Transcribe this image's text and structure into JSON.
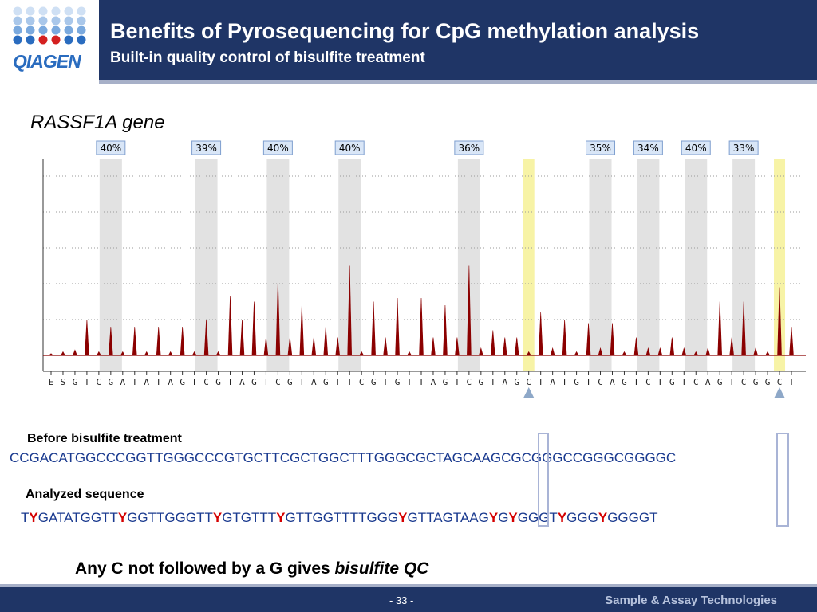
{
  "header": {
    "title": "Benefits of Pyrosequencing for CpG methylation analysis",
    "subtitle": "Built-in quality control of bisulfite treatment"
  },
  "logo": {
    "text": "QIAGEN"
  },
  "gene_label": "RASSF1A gene",
  "chart_data": {
    "type": "bar",
    "title": "",
    "dispensation": [
      "E",
      "S",
      "G",
      "T",
      "C",
      "G",
      "A",
      "T",
      "A",
      "T",
      "A",
      "G",
      "T",
      "C",
      "G",
      "T",
      "A",
      "G",
      "T",
      "C",
      "G",
      "T",
      "A",
      "G",
      "T",
      "T",
      "C",
      "G",
      "T",
      "G",
      "T",
      "T",
      "A",
      "G",
      "T",
      "C",
      "G",
      "T",
      "A",
      "G",
      "C",
      "T",
      "A",
      "T",
      "G",
      "T",
      "C",
      "A",
      "G",
      "T",
      "C",
      "T",
      "G",
      "T",
      "C",
      "A",
      "G",
      "T",
      "C",
      "G",
      "G",
      "C",
      "T"
    ],
    "peaks": [
      0.05,
      0.1,
      0.15,
      1.0,
      0.1,
      0.8,
      0.1,
      0.8,
      0.1,
      0.8,
      0.1,
      0.8,
      0.1,
      1.0,
      0.1,
      1.65,
      1.0,
      1.5,
      0.5,
      2.1,
      0.5,
      1.4,
      0.5,
      0.8,
      0.5,
      2.5,
      0.1,
      1.5,
      0.5,
      1.6,
      0.1,
      1.6,
      0.5,
      1.4,
      0.5,
      2.5,
      0.2,
      0.7,
      0.5,
      0.5,
      0.1,
      1.2,
      0.2,
      1.0,
      0.1,
      0.9,
      0.2,
      0.9,
      0.1,
      0.5,
      0.2,
      0.2,
      0.5,
      0.2,
      0.1,
      0.2,
      1.5,
      0.5,
      1.5,
      0.2,
      0.1,
      1.9,
      0.8
    ],
    "methylation_labels": [
      {
        "pos": 5,
        "label": "40%"
      },
      {
        "pos": 13,
        "label": "39%"
      },
      {
        "pos": 19,
        "label": "40%"
      },
      {
        "pos": 25,
        "label": "40%"
      },
      {
        "pos": 35,
        "label": "36%"
      },
      {
        "pos": 46,
        "label": "35%"
      },
      {
        "pos": 50,
        "label": "34%"
      },
      {
        "pos": 54,
        "label": "40%"
      },
      {
        "pos": 58,
        "label": "33%"
      }
    ],
    "qc_positions": [
      40,
      61
    ],
    "colors": {
      "peak": "#8b0000",
      "cpg_band": "#e2e2e2",
      "qc_band": "#f7f3a6",
      "label_fill": "#d9e6f7",
      "label_border": "#7f9fcf"
    }
  },
  "before_label": "Before bisulfite treatment",
  "before_seq": "CCGACATGGCCCGGTTGGGCCCGTGCTTCGCTGGCTTTGGGCGCTAGCAAGCGCGGGCCGGGCGGGGC",
  "analyzed_label": "Analyzed sequence",
  "analyzed_seq_parts": [
    "T",
    "Y",
    "GATATGGTT",
    "Y",
    "GGTTGGGTT",
    "Y",
    "GTGTTT",
    "Y",
    "GTTGGTTTTGGG",
    "Y",
    "GTTAG",
    "T",
    "AAG",
    "Y",
    "G",
    "Y",
    "GGGT",
    "Y",
    "GGG",
    "Y",
    "GGGG",
    "T"
  ],
  "takeaway": {
    "text": "Any C not followed by a G gives ",
    "emphasis": "bisulfite QC"
  },
  "footer": {
    "page": "- 33 -",
    "tagline": "Sample & Assay Technologies"
  }
}
